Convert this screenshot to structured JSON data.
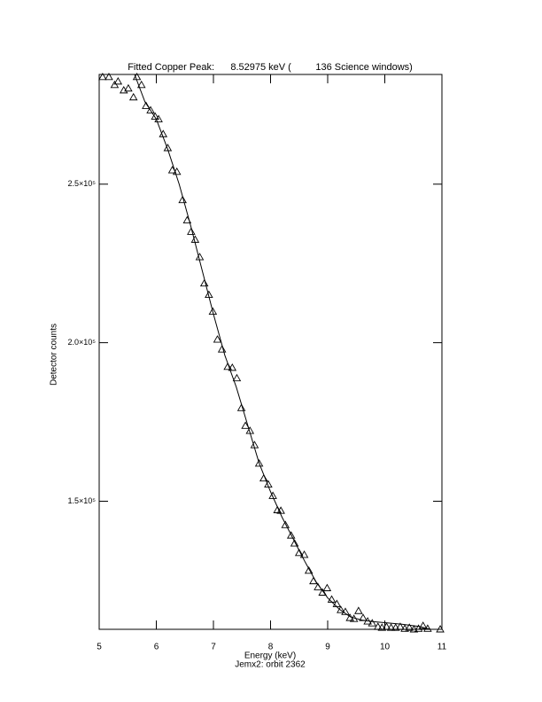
{
  "chart_data": {
    "type": "scatter",
    "title": "Fitted Copper Peak:      8.52975 keV (         136 Science windows)",
    "subtitle": "Jemx2: orbit 2362",
    "x_label": "Energy (keV)",
    "y_label": "Detector counts",
    "xlim": [
      5,
      11
    ],
    "ylim": [
      109600,
      284600
    ],
    "xticks": [
      5,
      6,
      7,
      8,
      9,
      10,
      11
    ],
    "yticks": [
      {
        "value": 150000,
        "label": "1.5×10⁵"
      },
      {
        "value": 200000,
        "label": "2.0×10⁵"
      },
      {
        "value": 250000,
        "label": "2.5×10⁵"
      }
    ],
    "series": [
      {
        "color": "#000000",
        "marker": "triangle",
        "x": [
          5.06,
          5.17,
          5.27,
          5.33,
          5.43,
          5.51,
          5.6,
          5.66,
          5.74,
          5.82,
          5.9,
          5.98,
          6.04,
          6.12,
          6.2,
          6.28,
          6.36,
          6.46,
          6.54,
          6.61,
          6.68,
          6.76,
          6.84,
          6.92,
          6.99,
          7.07,
          7.15,
          7.25,
          7.33,
          7.41,
          7.49,
          7.56,
          7.64,
          7.72,
          7.8,
          7.88,
          7.96,
          8.04,
          8.12,
          8.18,
          8.26,
          8.36,
          8.42,
          8.5,
          8.59,
          8.67,
          8.75,
          8.83,
          8.91,
          8.99,
          9.07,
          9.16,
          9.23,
          9.31,
          9.39,
          9.46,
          9.54,
          9.62,
          9.7,
          9.78,
          9.88,
          9.95,
          10.03,
          10.11,
          10.19,
          10.27,
          10.35,
          10.43,
          10.51,
          10.59,
          10.67,
          10.75,
          10.97
        ],
        "values": [
          283800,
          283800,
          281300,
          282400,
          279600,
          280200,
          277400,
          283800,
          281300,
          274700,
          273300,
          271300,
          270500,
          265800,
          261400,
          254400,
          253900,
          245000,
          238600,
          235000,
          232500,
          227000,
          218700,
          215100,
          209800,
          201000,
          197900,
          192400,
          192100,
          188800,
          179400,
          173800,
          172200,
          167700,
          161900,
          157200,
          155300,
          151700,
          147200,
          147000,
          142500,
          139200,
          136700,
          133700,
          133100,
          128100,
          124800,
          122900,
          121200,
          122600,
          119000,
          117600,
          115700,
          115100,
          113200,
          112900,
          115400,
          113200,
          112100,
          111500,
          110400,
          110100,
          110400,
          110100,
          110100,
          110400,
          109800,
          110100,
          109600,
          109800,
          110700,
          109800,
          109600
        ]
      },
      {
        "color": "#000000",
        "marker": "line",
        "x": [
          5.62,
          5.8,
          6.0,
          6.2,
          6.4,
          6.6,
          6.8,
          7.0,
          7.2,
          7.4,
          7.6,
          7.8,
          8.0,
          8.2,
          8.4,
          8.6,
          8.8,
          9.0,
          9.2,
          9.4,
          9.6,
          9.8,
          10.0,
          10.3,
          10.6,
          10.8
        ],
        "values": [
          284600,
          276000,
          270500,
          261000,
          250000,
          237000,
          223000,
          209000,
          196000,
          186000,
          174000,
          162000,
          153000,
          145000,
          138000,
          131000,
          124500,
          119500,
          116000,
          113500,
          112500,
          112000,
          111700,
          111200,
          110500,
          109600
        ]
      }
    ]
  }
}
